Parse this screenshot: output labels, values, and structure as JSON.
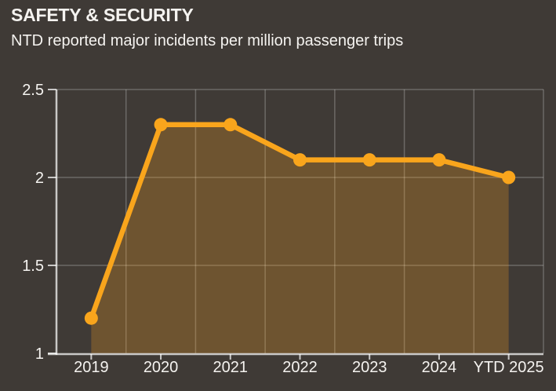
{
  "header": {
    "title": "SAFETY & SECURITY",
    "subtitle": "NTD reported major incidents per million passenger trips"
  },
  "colors": {
    "background": "#3F3A36",
    "text": "#F5F3F0",
    "line": "#F9A51C",
    "marker": "#F9A51C",
    "area_fill": "rgba(250,164,30,0.25)",
    "gridline": "rgba(255,255,255,0.24)",
    "axis": "rgba(255,255,255,0.72)"
  },
  "chart_data": {
    "type": "line",
    "title": "SAFETY & SECURITY",
    "subtitle": "NTD reported major incidents per million passenger trips",
    "categories": [
      "2019",
      "2020",
      "2021",
      "2022",
      "2023",
      "2024",
      "YTD 2025"
    ],
    "series": [
      {
        "name": "NTD reported major incidents per million passenger trips",
        "values": [
          1.2,
          2.3,
          2.3,
          2.1,
          2.1,
          2.1,
          2.0
        ]
      }
    ],
    "ylim": [
      1,
      2.5
    ],
    "yticks": [
      1,
      1.5,
      2,
      2.5
    ],
    "ytick_labels": [
      "1",
      "1.5",
      "2",
      "2.5"
    ],
    "grid": true,
    "area_fill": true,
    "markers": true,
    "legend": "none"
  }
}
